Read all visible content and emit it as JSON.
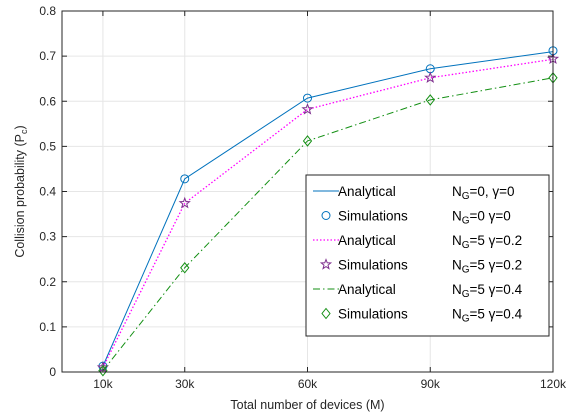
{
  "chart_data": {
    "type": "line",
    "xlabel": "Total number of devices (M)",
    "ylabel": "Collision probability (P",
    "ylabel_sub": "c",
    "ylabel_close": ")",
    "categories": [
      "10k",
      "30k",
      "60k",
      "90k",
      "120k"
    ],
    "x": [
      10,
      30,
      60,
      90,
      120
    ],
    "xlim": [
      0,
      120
    ],
    "ylim": [
      0,
      0.8
    ],
    "yticks": [
      "0",
      "0.1",
      "0.2",
      "0.3",
      "0.4",
      "0.5",
      "0.6",
      "0.7",
      "0.8"
    ],
    "grid": true,
    "legend_position": "lower-right",
    "series": [
      {
        "kind": "Analytical",
        "values": [
          0.013,
          0.428,
          0.607,
          0.672,
          0.71
        ],
        "color": "#0072BD",
        "style": "solid",
        "marker": "none",
        "legend": {
          "label": "Analytical",
          "ng": "N",
          "ng_sub": "G",
          "rest": "=0, γ=0"
        }
      },
      {
        "kind": "Simulations",
        "values": [
          0.013,
          0.428,
          0.607,
          0.672,
          0.712
        ],
        "color": "#0072BD",
        "style": "none",
        "marker": "circle",
        "legend": {
          "label": "Simulations",
          "ng": "N",
          "ng_sub": "G",
          "rest": "=0  γ=0"
        }
      },
      {
        "kind": "Analytical",
        "values": [
          0.01,
          0.374,
          0.582,
          0.652,
          0.693
        ],
        "color": "#FF00FF",
        "style": "dotted",
        "marker": "none",
        "legend": {
          "label": "Analytical",
          "ng": "N",
          "ng_sub": "G",
          "rest": "=5  γ=0.2"
        }
      },
      {
        "kind": "Simulations",
        "values": [
          0.01,
          0.374,
          0.582,
          0.652,
          0.694
        ],
        "color": "#7E2F8E",
        "style": "none",
        "marker": "star",
        "legend": {
          "label": "Simulations",
          "ng": "N",
          "ng_sub": "G",
          "rest": "=5  γ=0.2"
        }
      },
      {
        "kind": "Analytical",
        "values": [
          0.003,
          0.231,
          0.512,
          0.603,
          0.652
        ],
        "color": "#138F13",
        "style": "dashdot",
        "marker": "none",
        "legend": {
          "label": "Analytical",
          "ng": "N",
          "ng_sub": "G",
          "rest": "=5  γ=0.4"
        }
      },
      {
        "kind": "Simulations",
        "values": [
          0.003,
          0.231,
          0.512,
          0.603,
          0.652
        ],
        "color": "#138F13",
        "style": "none",
        "marker": "diamond",
        "legend": {
          "label": "Simulations",
          "ng": "N",
          "ng_sub": "G",
          "rest": "=5  γ=0.4"
        }
      }
    ]
  }
}
